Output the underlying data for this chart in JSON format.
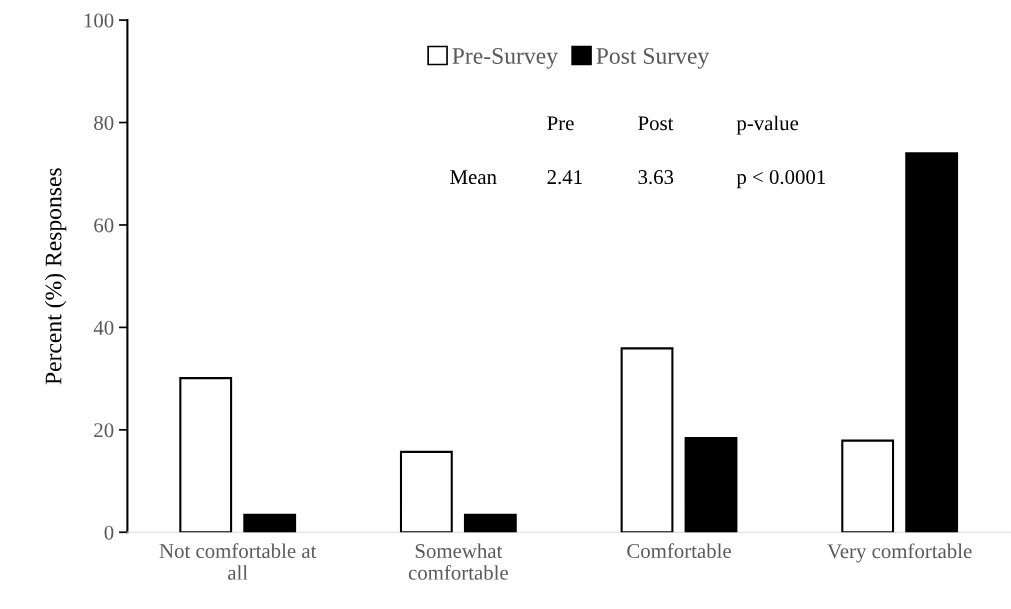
{
  "chart_data": {
    "type": "bar",
    "ylabel": "Percent (%) Responses",
    "categories": [
      "Not comfortable at all",
      "Somewhat comfortable",
      "Comfortable",
      "Very comfortable"
    ],
    "series": [
      {
        "name": "Pre-Survey",
        "color": "#ffffff",
        "values": [
          30.1,
          15.7,
          35.9,
          17.9
        ]
      },
      {
        "name": "Post Survey",
        "color": "#000000",
        "values": [
          3.4,
          3.4,
          18.4,
          74
        ]
      }
    ],
    "ylim": [
      0,
      100
    ],
    "yticks": [
      0,
      20,
      40,
      60,
      80,
      100
    ],
    "grid": false,
    "legend": "top",
    "annotations": [
      "Pre",
      "Post",
      "p-value",
      "Mean",
      "2.41",
      "3.63",
      "p < 0.0001"
    ]
  }
}
